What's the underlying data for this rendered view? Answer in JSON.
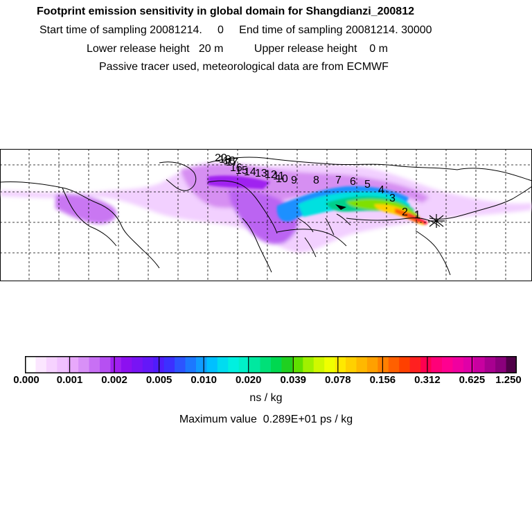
{
  "header": {
    "title": "Footprint emission sensitivity in global domain for Shangdianzi_200812",
    "sampling": "Start time of sampling 20081214.     0     End time of sampling 20081214. 30000",
    "heights": "Lower release height   20 m          Upper release height    0 m",
    "tracer": "Passive tracer used, meteorological data are from ECMWF"
  },
  "map": {
    "region": "global domain",
    "grid": "dashed lat/lon graticule",
    "plume_colors": [
      "#f0c8ff",
      "#d07cf0",
      "#a020f0",
      "#6a1cf0",
      "#1e90ff",
      "#00e0e0",
      "#00d08a",
      "#80e000",
      "#ffd000",
      "#ff6000",
      "#ff0030",
      "#a0007a"
    ],
    "trajectory_labels": [
      "1",
      "2",
      "3",
      "4",
      "5",
      "6",
      "7",
      "8",
      "9",
      "10",
      "11",
      "12",
      "13",
      "14",
      "15",
      "16",
      "17",
      "18",
      "19",
      "20"
    ],
    "release_marker": "x-icon"
  },
  "colorbar": {
    "colors": [
      "#ffffff",
      "#fbe6ff",
      "#f6d2ff",
      "#f0c0ff",
      "#e8a8fb",
      "#d890f7",
      "#c870f4",
      "#b650f2",
      "#a020f0",
      "#8c10f0",
      "#7814f4",
      "#6418f8",
      "#501cfc",
      "#3c30ff",
      "#2c54ff",
      "#1c78ff",
      "#109cff",
      "#00c0ff",
      "#00dcf0",
      "#00f0e0",
      "#00f0c8",
      "#00e8a0",
      "#00e078",
      "#00d850",
      "#20d020",
      "#60e000",
      "#a0f000",
      "#d0f800",
      "#f0ff00",
      "#ffe800",
      "#ffd000",
      "#ffb800",
      "#ffa000",
      "#ff8000",
      "#ff6000",
      "#ff4000",
      "#ff2020",
      "#ff0050",
      "#ff0078",
      "#ff0090",
      "#f000a0",
      "#e000a8",
      "#c800a0",
      "#a80090",
      "#8a007c",
      "#500048"
    ],
    "ticks": [
      "0.000",
      "0.001",
      "0.002",
      "0.005",
      "0.010",
      "0.020",
      "0.039",
      "0.078",
      "0.156",
      "0.312",
      "0.625",
      "1.250"
    ],
    "unit": "ns / kg"
  },
  "max_value": "Maximum value  0.289E+01 ps / kg"
}
